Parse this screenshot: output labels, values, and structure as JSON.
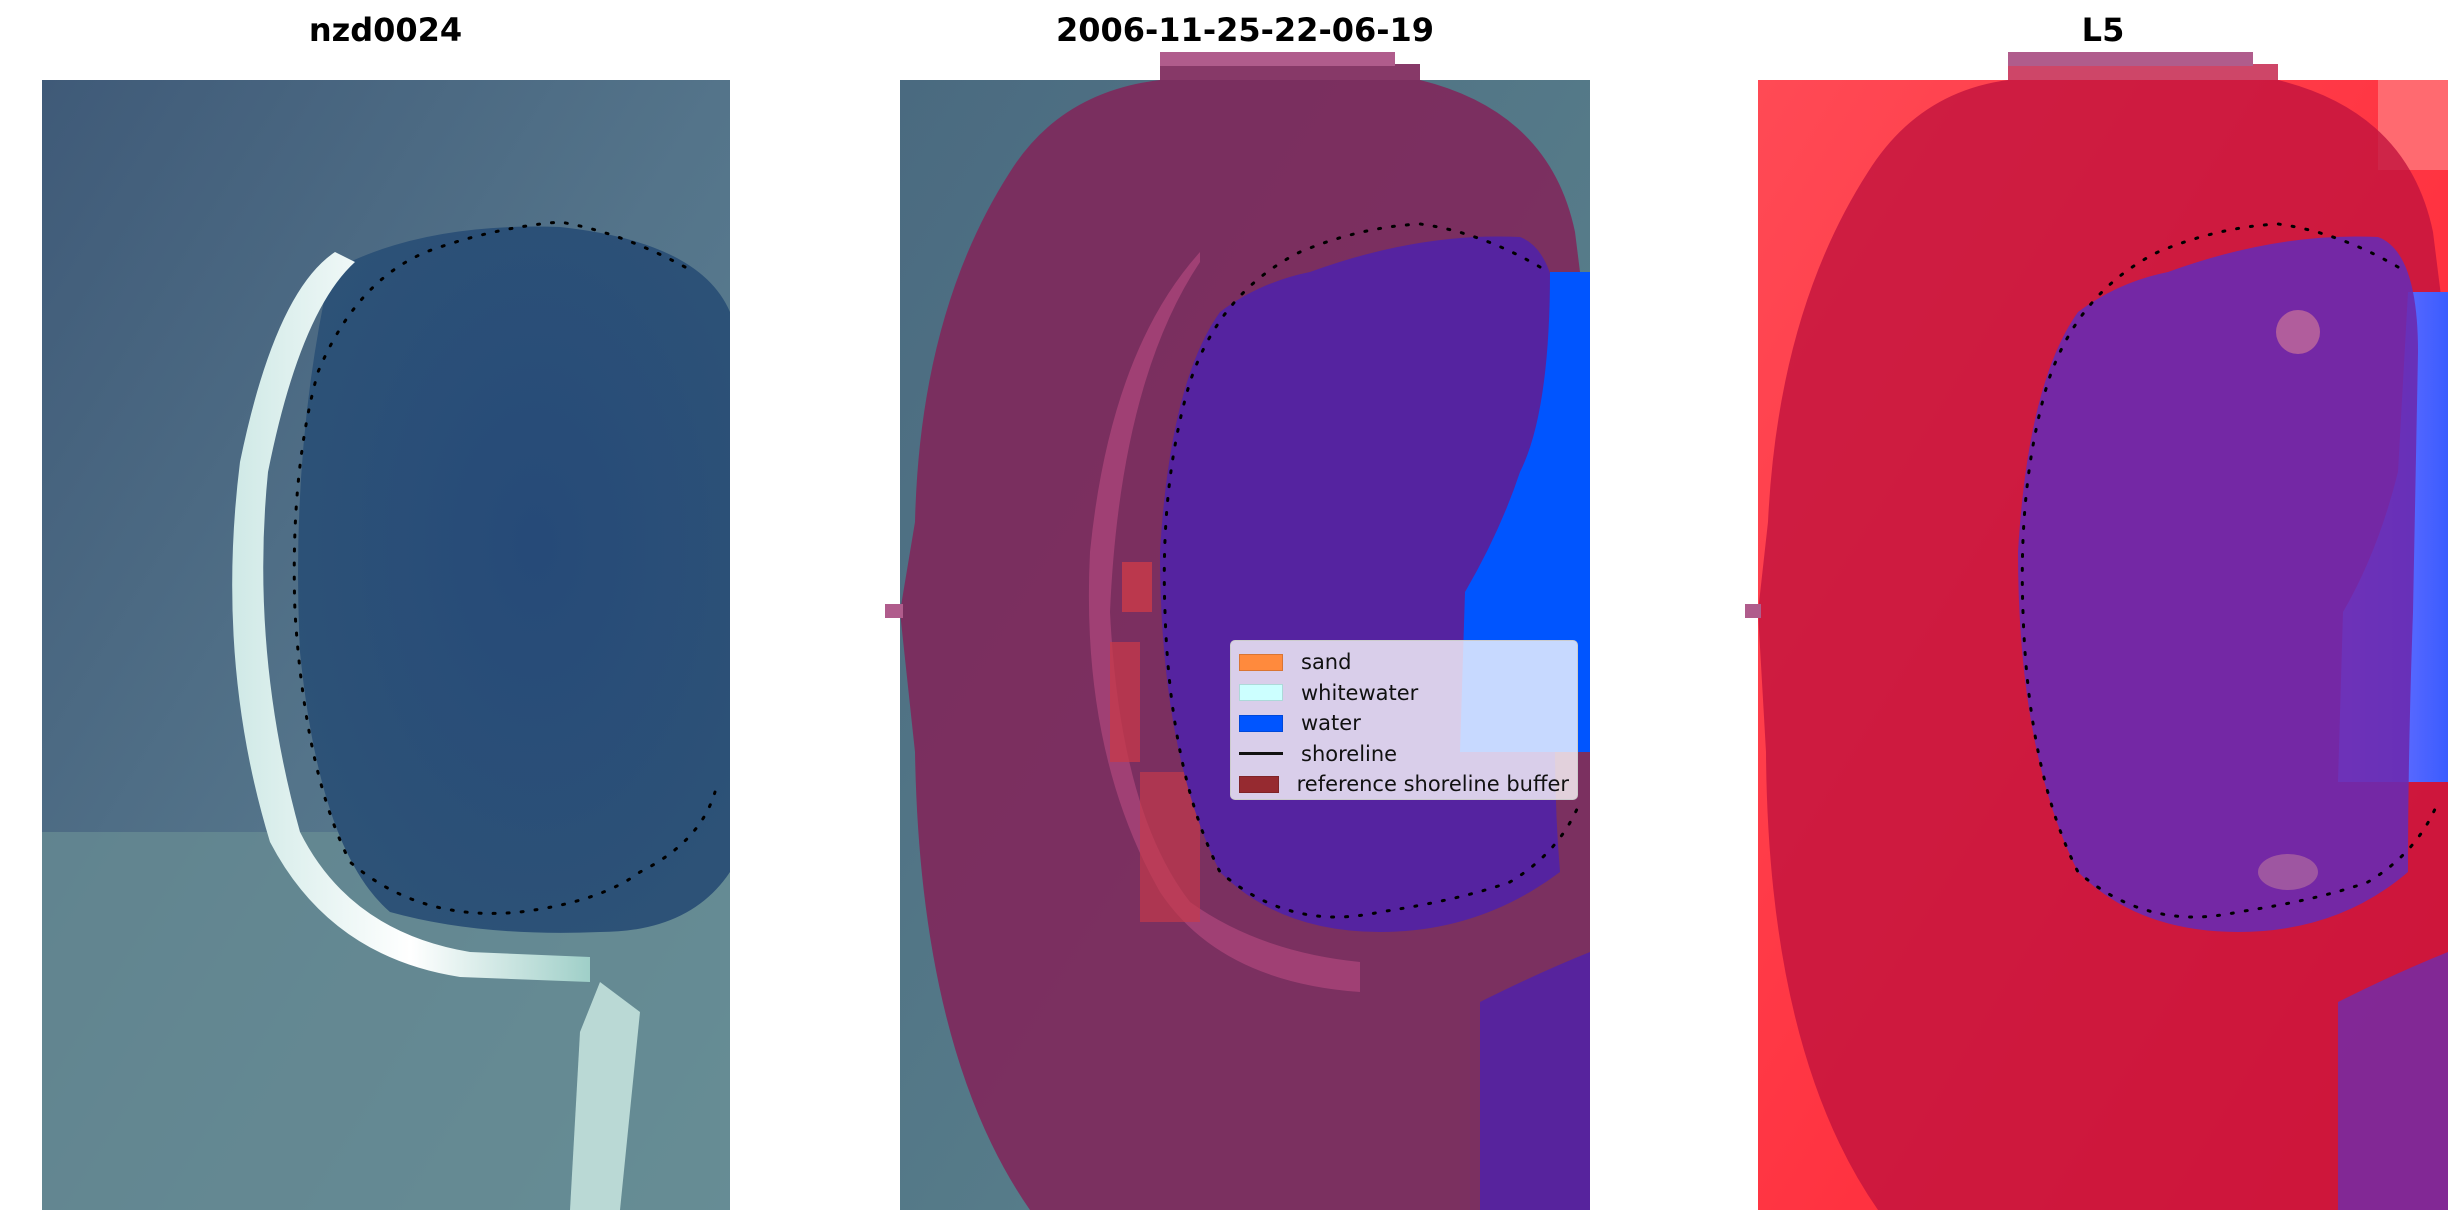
{
  "panels": [
    {
      "title": "nzd0024"
    },
    {
      "title": "2006-11-25-22-06-19"
    },
    {
      "title": "L5"
    }
  ],
  "legend": {
    "items": [
      {
        "label": "sand",
        "color": "#ff8a3d"
      },
      {
        "label": "whitewater",
        "color": "#ccffff"
      },
      {
        "label": "water",
        "color": "#0055ff"
      },
      {
        "label": "shoreline",
        "color": "#000000"
      },
      {
        "label": "reference shoreline buffer",
        "color": "#962a30"
      }
    ]
  },
  "colors": {
    "lagoon": "#2a4a72",
    "land": "#5f7f8e",
    "buffer_overlay": "#7a1f4e",
    "classified_water": "#5222a0",
    "ocean_water": "#0058ff",
    "index_high": "#ff1a2a",
    "index_low": "#3a5cff"
  }
}
